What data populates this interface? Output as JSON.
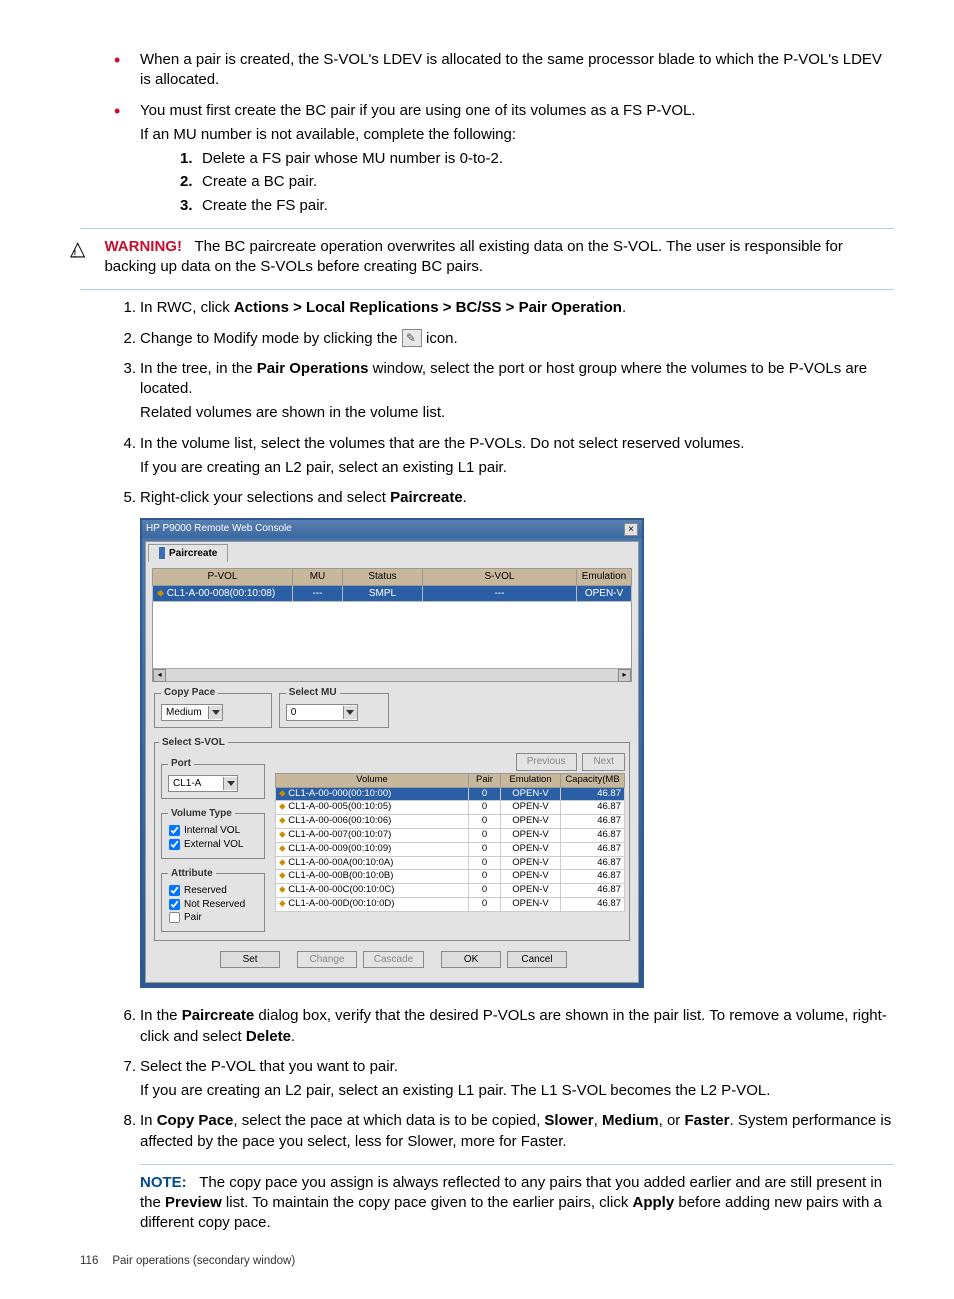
{
  "bullets": {
    "b1": "When a pair is created, the S-VOL's LDEV is allocated to the same processor blade to which the P-VOL's LDEV is allocated.",
    "b2": "You must first create the BC pair if you are using one of its volumes as a FS P-VOL.",
    "b2sub": "If an MU number is not available, complete the following:",
    "b2list": {
      "i1": "Delete a FS pair whose MU number is 0-to-2.",
      "i2": "Create a BC pair.",
      "i3": "Create the FS pair."
    }
  },
  "warning": {
    "label": "WARNING!",
    "text": "The BC paircreate operation overwrites all existing data on the S-VOL. The user is responsible for backing up data on the S-VOLs before creating BC pairs."
  },
  "steps": {
    "s1a": "In RWC, click ",
    "s1b": "Actions > Local Replications > BC/SS > Pair Operation",
    "s1c": ".",
    "s2a": "Change to Modify mode by clicking the ",
    "s2b": " icon.",
    "s3a": "In the tree, in the ",
    "s3b": "Pair Operations",
    "s3c": " window, select the port or host group where the volumes to be P-VOLs are located.",
    "s3d": "Related volumes are shown in the volume list.",
    "s4a": "In the volume list, select the volumes that are the P-VOLs. Do not select reserved volumes.",
    "s4b": "If you are creating an L2 pair, select an existing L1 pair.",
    "s5a": "Right-click your selections and select ",
    "s5b": "Paircreate",
    "s5c": ".",
    "s6a": "In the ",
    "s6b": "Paircreate",
    "s6c": " dialog box, verify that the desired P-VOLs are shown in the pair list. To remove a volume, right-click and select ",
    "s6d": "Delete",
    "s6e": ".",
    "s7a": "Select the P-VOL that you want to pair.",
    "s7b": "If you are creating an L2 pair, select an existing L1 pair. The L1 S-VOL becomes the L2 P-VOL.",
    "s8a": "In ",
    "s8b": "Copy Pace",
    "s8c": ", select the pace at which data is to be copied, ",
    "s8d": "Slower",
    "s8e": ", ",
    "s8f": "Medium",
    "s8g": ", or ",
    "s8h": "Faster",
    "s8i": ". System performance is affected by the pace you select, less for Slower, more for Faster."
  },
  "note": {
    "label": "NOTE:",
    "t1": "The copy pace you assign is always reflected to any pairs that you added earlier and are still present in the ",
    "t2": "Preview",
    "t3": " list. To maintain the copy pace given to the earlier pairs, click ",
    "t4": "Apply",
    "t5": " before adding new pairs with a different copy pace."
  },
  "dialog": {
    "title": "HP P9000 Remote Web Console",
    "tab": "Paircreate",
    "pair_headers": {
      "pvol": "P-VOL",
      "mu": "MU",
      "status": "Status",
      "svol": "S-VOL",
      "emul": "Emulation"
    },
    "pair_row": {
      "pvol": "CL1-A-00-008(00:10:08)",
      "mu": "---",
      "status": "SMPL",
      "svol": "---",
      "emul": "OPEN-V"
    },
    "copy_pace": {
      "legend": "Copy Pace",
      "value": "Medium"
    },
    "select_mu": {
      "legend": "Select MU",
      "value": "0"
    },
    "select_svol": "Select S-VOL",
    "port": {
      "legend": "Port",
      "value": "CL1-A"
    },
    "voltype": {
      "legend": "Volume Type",
      "internal": "Internal VOL",
      "external": "External VOL"
    },
    "attribute": {
      "legend": "Attribute",
      "reserved": "Reserved",
      "notreserved": "Not Reserved",
      "pair": "Pair"
    },
    "nav": {
      "prev": "Previous",
      "next": "Next"
    },
    "vol_headers": {
      "vol": "Volume",
      "pair": "Pair",
      "emul": "Emulation",
      "cap": "Capacity(MB"
    },
    "vol_rows": [
      {
        "v": "CL1-A-00-000(00:10:00)",
        "p": "0",
        "e": "OPEN-V",
        "c": "46.87",
        "sel": true
      },
      {
        "v": "CL1-A-00-005(00:10:05)",
        "p": "0",
        "e": "OPEN-V",
        "c": "46.87"
      },
      {
        "v": "CL1-A-00-006(00:10:06)",
        "p": "0",
        "e": "OPEN-V",
        "c": "46.87"
      },
      {
        "v": "CL1-A-00-007(00:10:07)",
        "p": "0",
        "e": "OPEN-V",
        "c": "46.87"
      },
      {
        "v": "CL1-A-00-009(00:10:09)",
        "p": "0",
        "e": "OPEN-V",
        "c": "46.87"
      },
      {
        "v": "CL1-A-00-00A(00:10:0A)",
        "p": "0",
        "e": "OPEN-V",
        "c": "46.87"
      },
      {
        "v": "CL1-A-00-00B(00:10:0B)",
        "p": "0",
        "e": "OPEN-V",
        "c": "46.87"
      },
      {
        "v": "CL1-A-00-00C(00:10:0C)",
        "p": "0",
        "e": "OPEN-V",
        "c": "46.87"
      },
      {
        "v": "CL1-A-00-00D(00:10:0D)",
        "p": "0",
        "e": "OPEN-V",
        "c": "46.87"
      }
    ],
    "buttons": {
      "set": "Set",
      "change": "Change",
      "cascade": "Cascade",
      "ok": "OK",
      "cancel": "Cancel"
    }
  },
  "footer": {
    "page": "116",
    "title": "Pair operations (secondary window)"
  },
  "colors": {
    "accent": "#c8102e",
    "link": "#004b8d",
    "rule": "#b3d1e6"
  }
}
